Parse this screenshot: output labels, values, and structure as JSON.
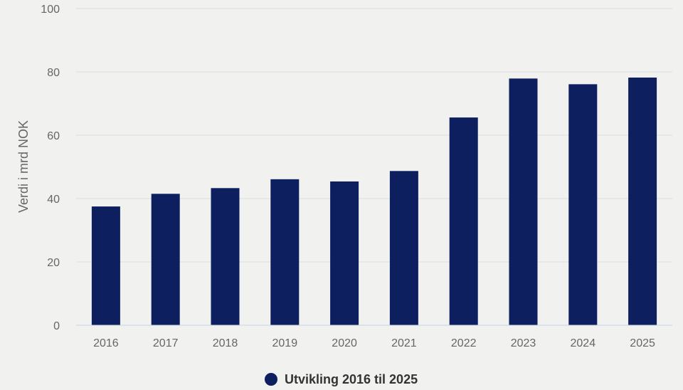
{
  "chart_data": {
    "type": "bar",
    "categories": [
      "2016",
      "2017",
      "2018",
      "2019",
      "2020",
      "2021",
      "2022",
      "2023",
      "2024",
      "2025"
    ],
    "series": [
      {
        "name": "Utvikling 2016 til 2025",
        "values": [
          37.5,
          41.5,
          43.3,
          46.1,
          45.4,
          48.7,
          65.6,
          77.9,
          76.1,
          78.2
        ]
      }
    ],
    "ylabel": "Verdi i mrd NOK",
    "xlabel": "",
    "ylim": [
      0,
      100
    ],
    "yticks": [
      "0",
      "20",
      "40",
      "60",
      "80",
      "100"
    ],
    "grid": true,
    "legend_position": "bottom-center",
    "colors": {
      "bar": "#0d1f5e",
      "grid": "#dcdcdc",
      "axis": "#c7d1e6",
      "background": "#f1f2ef"
    }
  }
}
